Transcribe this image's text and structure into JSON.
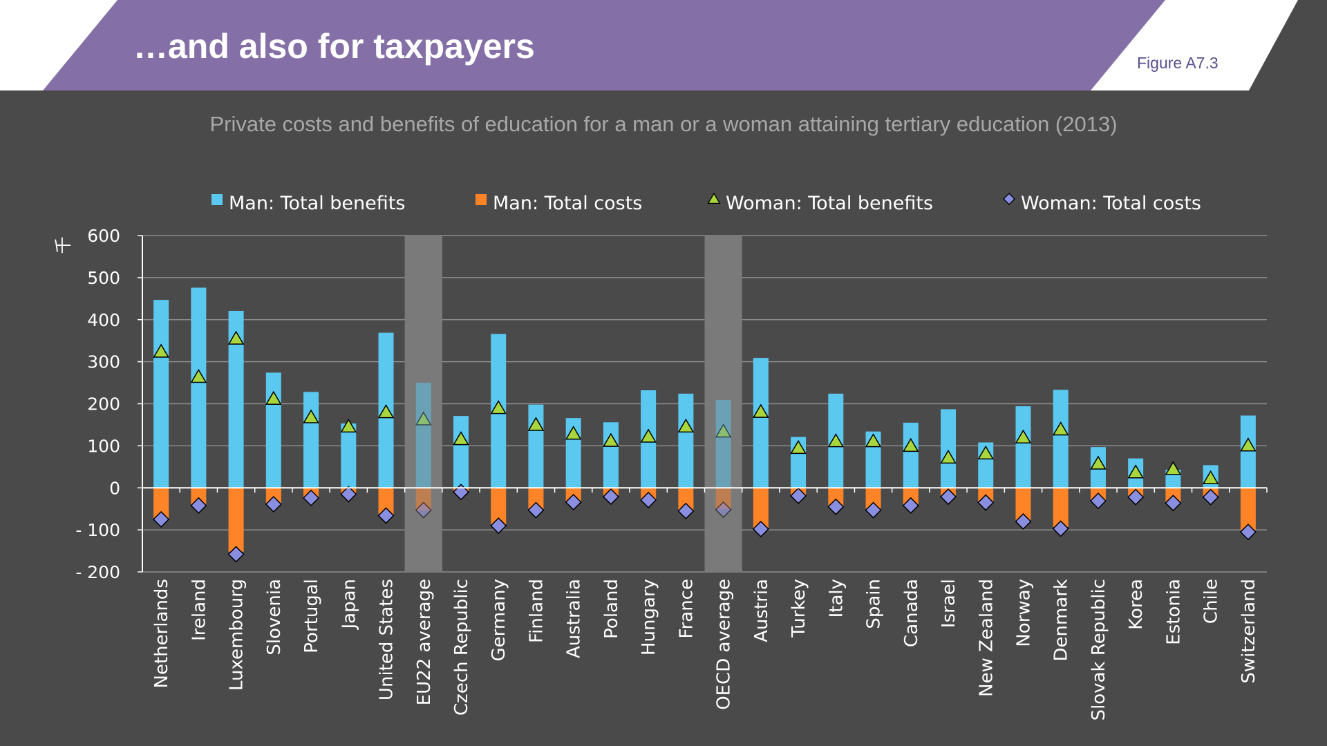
{
  "header": {
    "title": "…and also for taxpayers",
    "figure_label": "Figure A7.3"
  },
  "colors": {
    "background": "#4a4a4a",
    "banner": "#8470a6",
    "man_benefits": "#5bc8f0",
    "man_costs": "#ff8428",
    "woman_benefits": "#a8d63c",
    "woman_costs": "#8a8ee0",
    "highlight": "#7a7a7a"
  },
  "chart_data": {
    "type": "bar",
    "title": "Private costs and benefits of education for a man or a woman attaining tertiary education (2013)",
    "ylabel": "千",
    "ylim": [
      -200,
      600
    ],
    "yticks": [
      600,
      500,
      400,
      300,
      200,
      100,
      0,
      -100,
      -200
    ],
    "ytick_labels": [
      "600",
      "500",
      "400",
      "300",
      "200",
      "100",
      "0",
      "- 100",
      "- 200"
    ],
    "grid": true,
    "legend_position": "top",
    "highlighted_categories": [
      "EU22 average",
      "OECD average"
    ],
    "categories": [
      "Netherlands",
      "Ireland",
      "Luxembourg",
      "Slovenia",
      "Portugal",
      "Japan",
      "United States",
      "EU22 average",
      "Czech Republic",
      "Germany",
      "Finland",
      "Australia",
      "Poland",
      "Hungary",
      "France",
      "OECD average",
      "Austria",
      "Turkey",
      "Italy",
      "Spain",
      "Canada",
      "Israel",
      "New Zealand",
      "Norway",
      "Denmark",
      "Slovak Republic",
      "Korea",
      "Estonia",
      "Chile",
      "Switzerland"
    ],
    "series": [
      {
        "name": "Man: Total benefits",
        "kind": "bar",
        "marker": "square",
        "values": [
          447,
          476,
          421,
          274,
          228,
          153,
          369,
          250,
          171,
          366,
          198,
          166,
          156,
          232,
          224,
          209,
          309,
          121,
          224,
          134,
          155,
          187,
          108,
          194,
          233,
          97,
          70,
          43,
          54,
          172
        ]
      },
      {
        "name": "Man: Total costs",
        "kind": "bar",
        "marker": "square",
        "values": [
          -73,
          -43,
          -152,
          -38,
          -25,
          -15,
          -63,
          -55,
          -12,
          -87,
          -50,
          -32,
          -20,
          -30,
          -53,
          -50,
          -95,
          -20,
          -43,
          -50,
          -40,
          -22,
          -35,
          -78,
          -93,
          -30,
          -22,
          -35,
          -22,
          -100
        ]
      },
      {
        "name": "Woman: Total benefits",
        "kind": "marker",
        "marker": "triangle",
        "values": [
          324,
          264,
          355,
          212,
          168,
          146,
          180,
          163,
          116,
          190,
          150,
          129,
          112,
          122,
          146,
          134,
          181,
          95,
          111,
          111,
          100,
          72,
          82,
          120,
          139,
          58,
          37,
          45,
          23,
          101
        ]
      },
      {
        "name": "Woman: Total costs",
        "kind": "marker",
        "marker": "diamond",
        "values": [
          -75,
          -42,
          -158,
          -39,
          -24,
          -15,
          -66,
          -53,
          -10,
          -90,
          -53,
          -34,
          -21,
          -29,
          -55,
          -52,
          -98,
          -19,
          -45,
          -53,
          -42,
          -21,
          -35,
          -80,
          -97,
          -31,
          -22,
          -36,
          -22,
          -105
        ]
      }
    ]
  }
}
